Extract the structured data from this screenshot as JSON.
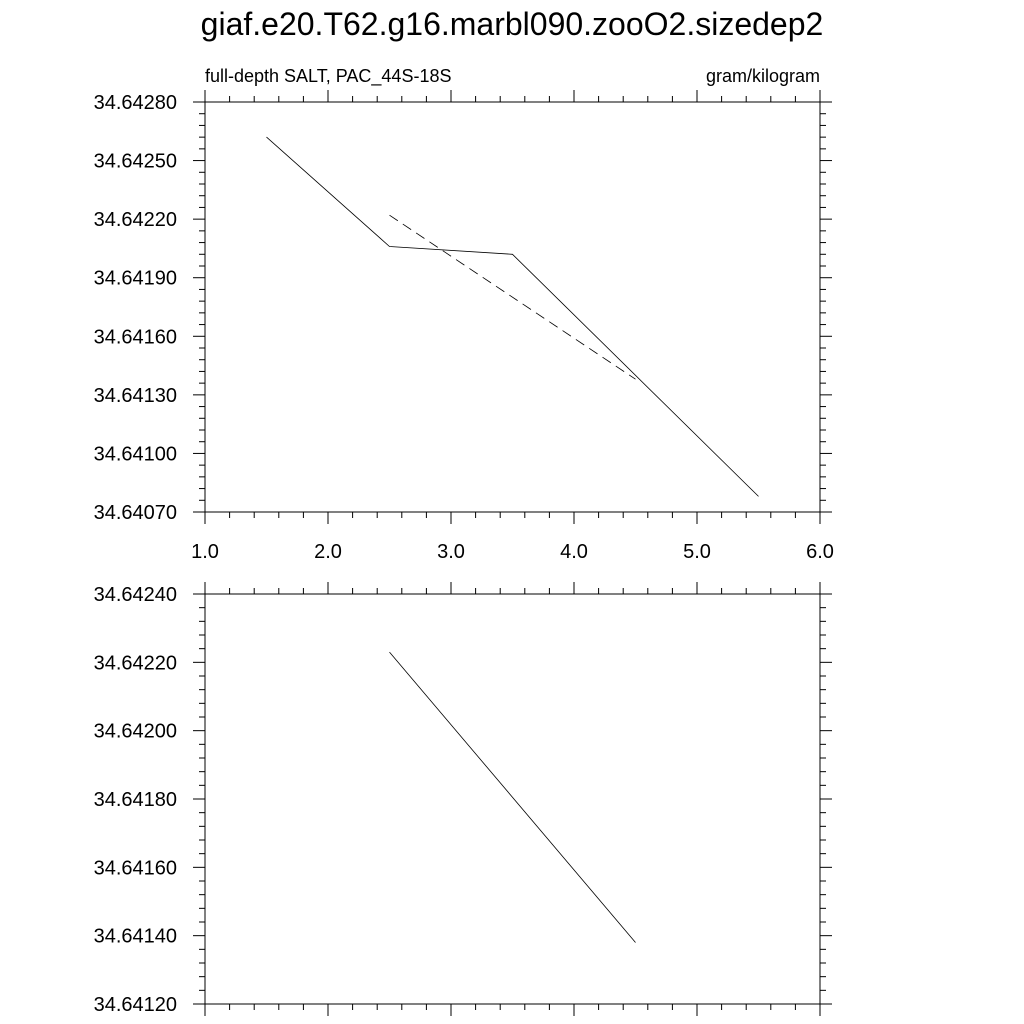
{
  "title": "giaf.e20.T62.g16.marbl090.zooO2.sizedep2",
  "chart_data": [
    {
      "type": "line",
      "left_label": "full-depth SALT, PAC_44S-18S",
      "right_label": "gram/kilogram",
      "xlim": [
        1.0,
        6.0
      ],
      "ylim": [
        34.6407,
        34.6428
      ],
      "x_ticks": [
        "1.0",
        "2.0",
        "3.0",
        "4.0",
        "5.0",
        "6.0"
      ],
      "x_tick_values": [
        1.0,
        2.0,
        3.0,
        4.0,
        5.0,
        6.0
      ],
      "y_ticks": [
        "34.64070",
        "34.64100",
        "34.64130",
        "34.64160",
        "34.64190",
        "34.64220",
        "34.64250",
        "34.64280"
      ],
      "y_tick_values": [
        34.6407,
        34.641,
        34.6413,
        34.6416,
        34.6419,
        34.6422,
        34.6425,
        34.6428
      ],
      "series": [
        {
          "style": "solid",
          "x": [
            1.5,
            2.5,
            3.5,
            5.5
          ],
          "y": [
            34.64262,
            34.64206,
            34.64202,
            34.64078
          ]
        },
        {
          "style": "dashed",
          "x": [
            2.5,
            4.5
          ],
          "y": [
            34.64222,
            34.64138
          ]
        }
      ]
    },
    {
      "type": "line",
      "xlim": [
        1.0,
        6.0
      ],
      "ylim": [
        34.6412,
        34.6424
      ],
      "y_ticks": [
        "34.64120",
        "34.64140",
        "34.64160",
        "34.64180",
        "34.64200",
        "34.64220",
        "34.64240"
      ],
      "y_tick_values": [
        34.6412,
        34.6414,
        34.6416,
        34.6418,
        34.642,
        34.6422,
        34.6424
      ],
      "series": [
        {
          "style": "solid",
          "x": [
            2.5,
            4.5
          ],
          "y": [
            34.64223,
            34.64138
          ]
        }
      ]
    }
  ]
}
